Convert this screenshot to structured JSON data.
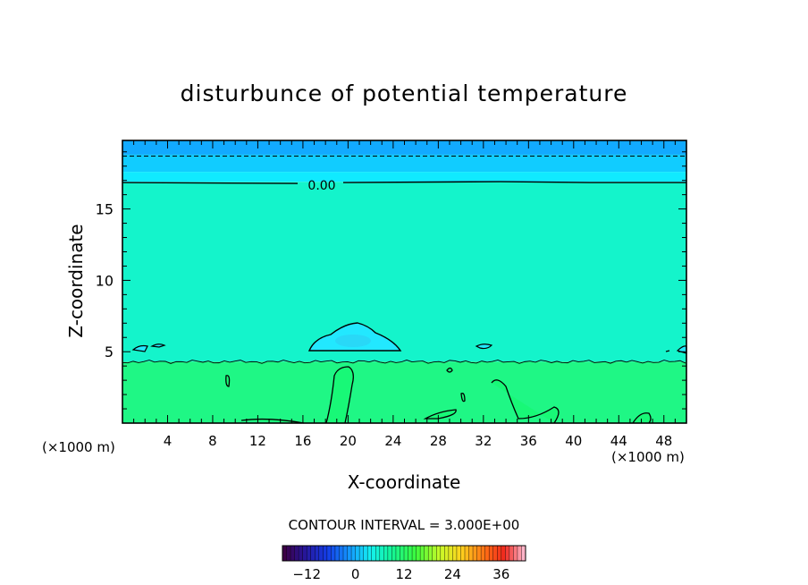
{
  "chart_data": {
    "type": "heatmap",
    "title": "disturbunce of potential temperature",
    "xlabel": "X-coordinate",
    "ylabel": "Z-coordinate",
    "x_unit_left": "(×1000 m)",
    "x_unit_right": "(×1000 m)",
    "xlim": [
      0,
      50
    ],
    "ylim": [
      0,
      19.8
    ],
    "x_ticks": [
      4,
      8,
      12,
      16,
      20,
      24,
      28,
      32,
      36,
      40,
      44,
      48
    ],
    "y_ticks": [
      5,
      10,
      15
    ],
    "contour_label": "0.00",
    "contour_interval_text": "CONTOUR INTERVAL = 3.000E+00",
    "colorbar": {
      "min": -18,
      "max": 42,
      "tick_values": [
        -12,
        0,
        12,
        24,
        36
      ],
      "tick_labels": [
        "−12",
        "0",
        "12",
        "24",
        "36"
      ]
    },
    "layers": [
      {
        "z_bottom": 18.8,
        "z_top": 19.8,
        "color": "#12aaff"
      },
      {
        "z_bottom": 17.6,
        "z_top": 18.8,
        "color": "#11ccff"
      },
      {
        "z_bottom": 16.9,
        "z_top": 17.6,
        "color": "#10eaff"
      },
      {
        "z_bottom": 4.3,
        "z_top": 16.9,
        "color": "#14f4cb"
      },
      {
        "z_bottom": 0,
        "z_top": 4.3,
        "color": "#1ff785"
      }
    ],
    "colors": {
      "frame": "#000000",
      "warm_blob": "#22e8ff",
      "dark_patch": "#12fa6a"
    }
  }
}
